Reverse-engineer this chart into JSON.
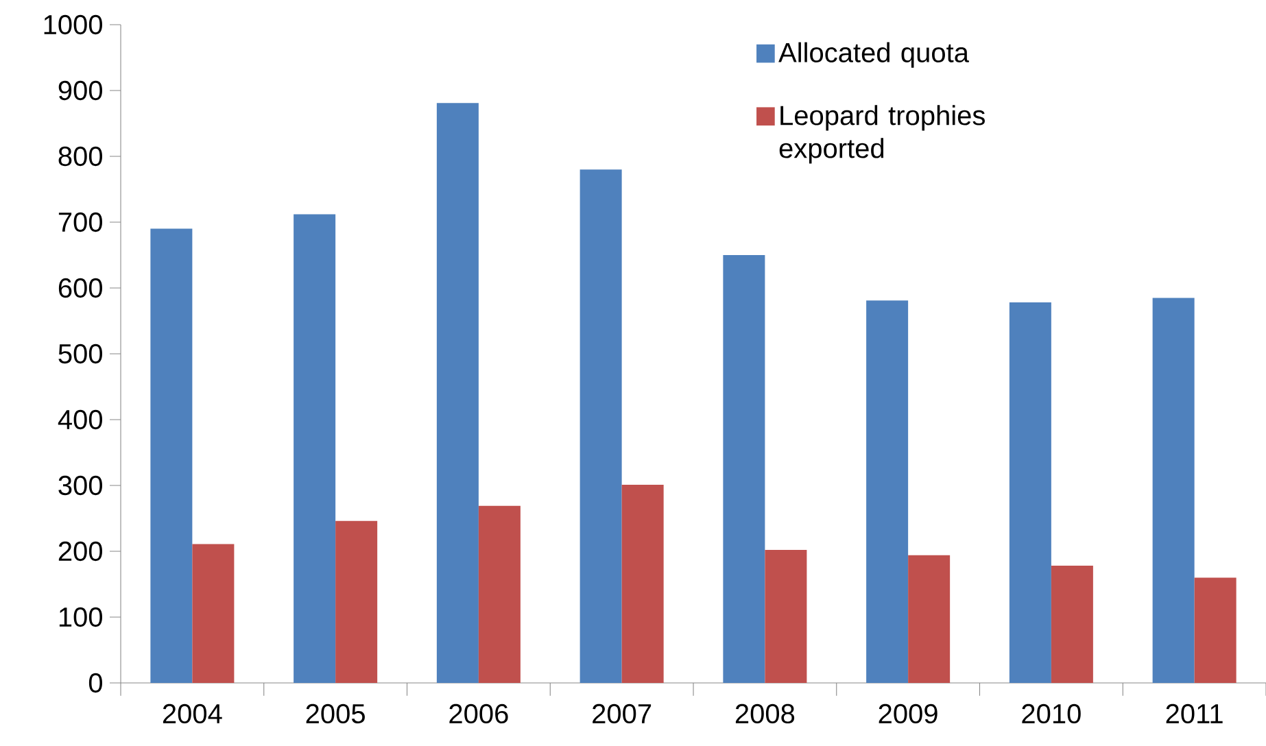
{
  "chart_data": {
    "type": "bar",
    "categories": [
      "2004",
      "2005",
      "2006",
      "2007",
      "2008",
      "2009",
      "2010",
      "2011"
    ],
    "series": [
      {
        "name": "Allocated quota",
        "color": "#4f81bd",
        "values": [
          690,
          712,
          881,
          780,
          650,
          581,
          578,
          585
        ]
      },
      {
        "name": "Leopard trophies exported",
        "color": "#c0504d",
        "values": [
          211,
          246,
          269,
          301,
          202,
          194,
          178,
          160
        ]
      }
    ],
    "ylim": [
      0,
      1000
    ],
    "yticks": [
      0,
      100,
      200,
      300,
      400,
      500,
      600,
      700,
      800,
      900,
      1000
    ],
    "legend": "top right"
  }
}
